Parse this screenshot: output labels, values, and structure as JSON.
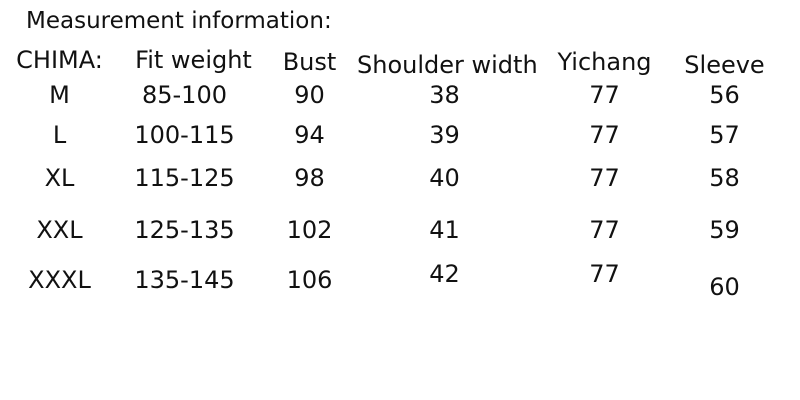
{
  "title": "Measurement information:",
  "colors": {
    "text": "#111111",
    "background": "#ffffff"
  },
  "table": {
    "headers": {
      "size": "CHIMA:",
      "fit_weight": "Fit weight",
      "bust": "Bust",
      "shoulder_width": "Shoulder width",
      "yichang": "Yichang",
      "sleeve": "Sleeve"
    },
    "rows": [
      {
        "size": "M",
        "fit_weight": "85-100",
        "bust": "90",
        "shoulder_width": "38",
        "yichang": "77",
        "sleeve": "56"
      },
      {
        "size": "L",
        "fit_weight": "100-115",
        "bust": "94",
        "shoulder_width": "39",
        "yichang": "77",
        "sleeve": "57"
      },
      {
        "size": "XL",
        "fit_weight": "115-125",
        "bust": "98",
        "shoulder_width": "40",
        "yichang": "77",
        "sleeve": "58"
      },
      {
        "size": "XXL",
        "fit_weight": "125-135",
        "bust": "102",
        "shoulder_width": "41",
        "yichang": "77",
        "sleeve": "59"
      },
      {
        "size": "XXXL",
        "fit_weight": "135-145",
        "bust": "106",
        "shoulder_width": "42",
        "yichang": "77",
        "sleeve": "60"
      }
    ]
  }
}
